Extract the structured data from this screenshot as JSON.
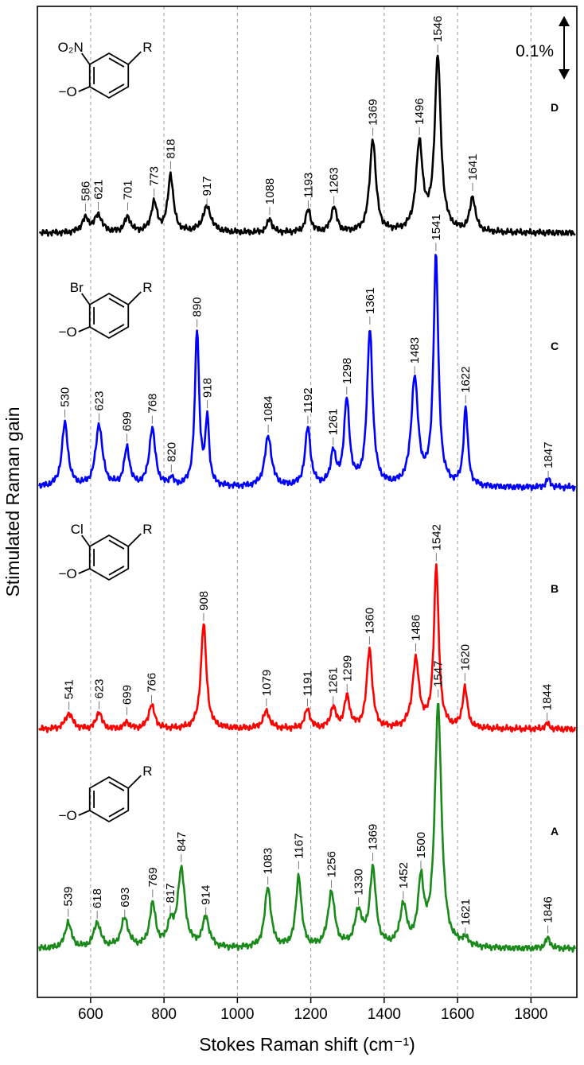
{
  "chart_data": {
    "type": "line",
    "xlabel": "Stokes Raman shift (cm⁻¹)",
    "ylabel": "Stimulated Raman gain",
    "xlim": [
      455,
      1925
    ],
    "x_ticks": [
      600,
      800,
      1000,
      1200,
      1400,
      1600,
      1800
    ],
    "x_tick_labels": [
      "600",
      "800",
      "1000",
      "1200",
      "1400",
      "1600",
      "1800"
    ],
    "grid": "vertical dashed lines at x ticks",
    "scale_bar": "0.1%",
    "series": [
      {
        "name": "D",
        "color": "#000000",
        "substituent": "O₂N",
        "ring_label": "R",
        "oxygen_label": "−O",
        "baseline": 0,
        "peaks": [
          {
            "x": 586,
            "h": 0.02,
            "w": 12,
            "label": "586"
          },
          {
            "x": 621,
            "h": 0.025,
            "w": 12,
            "label": "621"
          },
          {
            "x": 701,
            "h": 0.022,
            "w": 10,
            "label": "701"
          },
          {
            "x": 773,
            "h": 0.042,
            "w": 10,
            "label": "773"
          },
          {
            "x": 818,
            "h": 0.083,
            "w": 9,
            "label": "818"
          },
          {
            "x": 917,
            "h": 0.037,
            "w": 14,
            "label": "917"
          },
          {
            "x": 1088,
            "h": 0.02,
            "w": 8,
            "label": "1088"
          },
          {
            "x": 1193,
            "h": 0.032,
            "w": 9,
            "label": "1193"
          },
          {
            "x": 1263,
            "h": 0.037,
            "w": 9,
            "label": "1263"
          },
          {
            "x": 1369,
            "h": 0.135,
            "w": 10,
            "label": "1369"
          },
          {
            "x": 1496,
            "h": 0.125,
            "w": 11,
            "label": "1496"
          },
          {
            "x": 1546,
            "h": 0.252,
            "w": 10,
            "label": "1546"
          },
          {
            "x": 1641,
            "h": 0.05,
            "w": 9,
            "label": "1641"
          }
        ]
      },
      {
        "name": "C",
        "color": "#0000ff",
        "substituent": "Br",
        "ring_label": "R",
        "oxygen_label": "−O",
        "baseline": 0,
        "peaks": [
          {
            "x": 530,
            "h": 0.092,
            "w": 10,
            "label": "530"
          },
          {
            "x": 623,
            "h": 0.09,
            "w": 11,
            "label": "623"
          },
          {
            "x": 699,
            "h": 0.055,
            "w": 9,
            "label": "699"
          },
          {
            "x": 768,
            "h": 0.084,
            "w": 10,
            "label": "768"
          },
          {
            "x": 820,
            "h": 0.012,
            "w": 6,
            "label": "820"
          },
          {
            "x": 890,
            "h": 0.225,
            "w": 7,
            "label": "890"
          },
          {
            "x": 918,
            "h": 0.095,
            "w": 6,
            "label": "918"
          },
          {
            "x": 1084,
            "h": 0.073,
            "w": 11,
            "label": "1084"
          },
          {
            "x": 1192,
            "h": 0.085,
            "w": 9,
            "label": "1192"
          },
          {
            "x": 1261,
            "h": 0.048,
            "w": 8,
            "label": "1261"
          },
          {
            "x": 1298,
            "h": 0.122,
            "w": 9,
            "label": "1298"
          },
          {
            "x": 1361,
            "h": 0.225,
            "w": 9,
            "label": "1361"
          },
          {
            "x": 1483,
            "h": 0.155,
            "w": 11,
            "label": "1483"
          },
          {
            "x": 1541,
            "h": 0.33,
            "w": 8,
            "label": "1541"
          },
          {
            "x": 1622,
            "h": 0.112,
            "w": 7,
            "label": "1622"
          },
          {
            "x": 1847,
            "h": 0.012,
            "w": 7,
            "label": "1847"
          }
        ]
      },
      {
        "name": "B",
        "color": "#ff0000",
        "substituent": "Cl",
        "ring_label": "R",
        "oxygen_label": "−O",
        "baseline": 0,
        "peaks": [
          {
            "x": 541,
            "h": 0.023,
            "w": 12,
            "label": "541"
          },
          {
            "x": 623,
            "h": 0.025,
            "w": 9,
            "label": "623"
          },
          {
            "x": 699,
            "h": 0.01,
            "w": 8,
            "label": "699"
          },
          {
            "x": 766,
            "h": 0.035,
            "w": 10,
            "label": "766"
          },
          {
            "x": 908,
            "h": 0.152,
            "w": 9,
            "label": "908"
          },
          {
            "x": 1079,
            "h": 0.025,
            "w": 11,
            "label": "1079"
          },
          {
            "x": 1191,
            "h": 0.028,
            "w": 9,
            "label": "1191"
          },
          {
            "x": 1261,
            "h": 0.03,
            "w": 9,
            "label": "1261"
          },
          {
            "x": 1299,
            "h": 0.045,
            "w": 9,
            "label": "1299"
          },
          {
            "x": 1360,
            "h": 0.115,
            "w": 9,
            "label": "1360"
          },
          {
            "x": 1486,
            "h": 0.098,
            "w": 11,
            "label": "1486"
          },
          {
            "x": 1542,
            "h": 0.232,
            "w": 8,
            "label": "1542"
          },
          {
            "x": 1620,
            "h": 0.058,
            "w": 8,
            "label": "1620"
          },
          {
            "x": 1844,
            "h": 0.008,
            "w": 7,
            "label": "1844"
          }
        ]
      },
      {
        "name": "A",
        "color": "#1a8a1a",
        "substituent": "",
        "ring_label": "R",
        "oxygen_label": "−O",
        "baseline": 0,
        "peaks": [
          {
            "x": 539,
            "h": 0.038,
            "w": 10,
            "label": "539"
          },
          {
            "x": 618,
            "h": 0.037,
            "w": 11,
            "label": "618"
          },
          {
            "x": 693,
            "h": 0.042,
            "w": 12,
            "label": "693"
          },
          {
            "x": 769,
            "h": 0.062,
            "w": 10,
            "label": "769"
          },
          {
            "x": 817,
            "h": 0.03,
            "w": 9,
            "label": "817"
          },
          {
            "x": 847,
            "h": 0.112,
            "w": 12,
            "label": "847"
          },
          {
            "x": 914,
            "h": 0.043,
            "w": 11,
            "label": "914"
          },
          {
            "x": 1083,
            "h": 0.088,
            "w": 10,
            "label": "1083"
          },
          {
            "x": 1167,
            "h": 0.103,
            "w": 9,
            "label": "1167"
          },
          {
            "x": 1256,
            "h": 0.08,
            "w": 11,
            "label": "1256"
          },
          {
            "x": 1330,
            "h": 0.05,
            "w": 12,
            "label": "1330"
          },
          {
            "x": 1369,
            "h": 0.112,
            "w": 10,
            "label": "1369"
          },
          {
            "x": 1452,
            "h": 0.058,
            "w": 11,
            "label": "1452"
          },
          {
            "x": 1500,
            "h": 0.092,
            "w": 9,
            "label": "1500"
          },
          {
            "x": 1547,
            "h": 0.35,
            "w": 11,
            "label": "1547"
          },
          {
            "x": 1621,
            "h": 0.01,
            "w": 12,
            "label": "1621"
          },
          {
            "x": 1846,
            "h": 0.015,
            "w": 8,
            "label": "1846"
          }
        ]
      }
    ]
  }
}
